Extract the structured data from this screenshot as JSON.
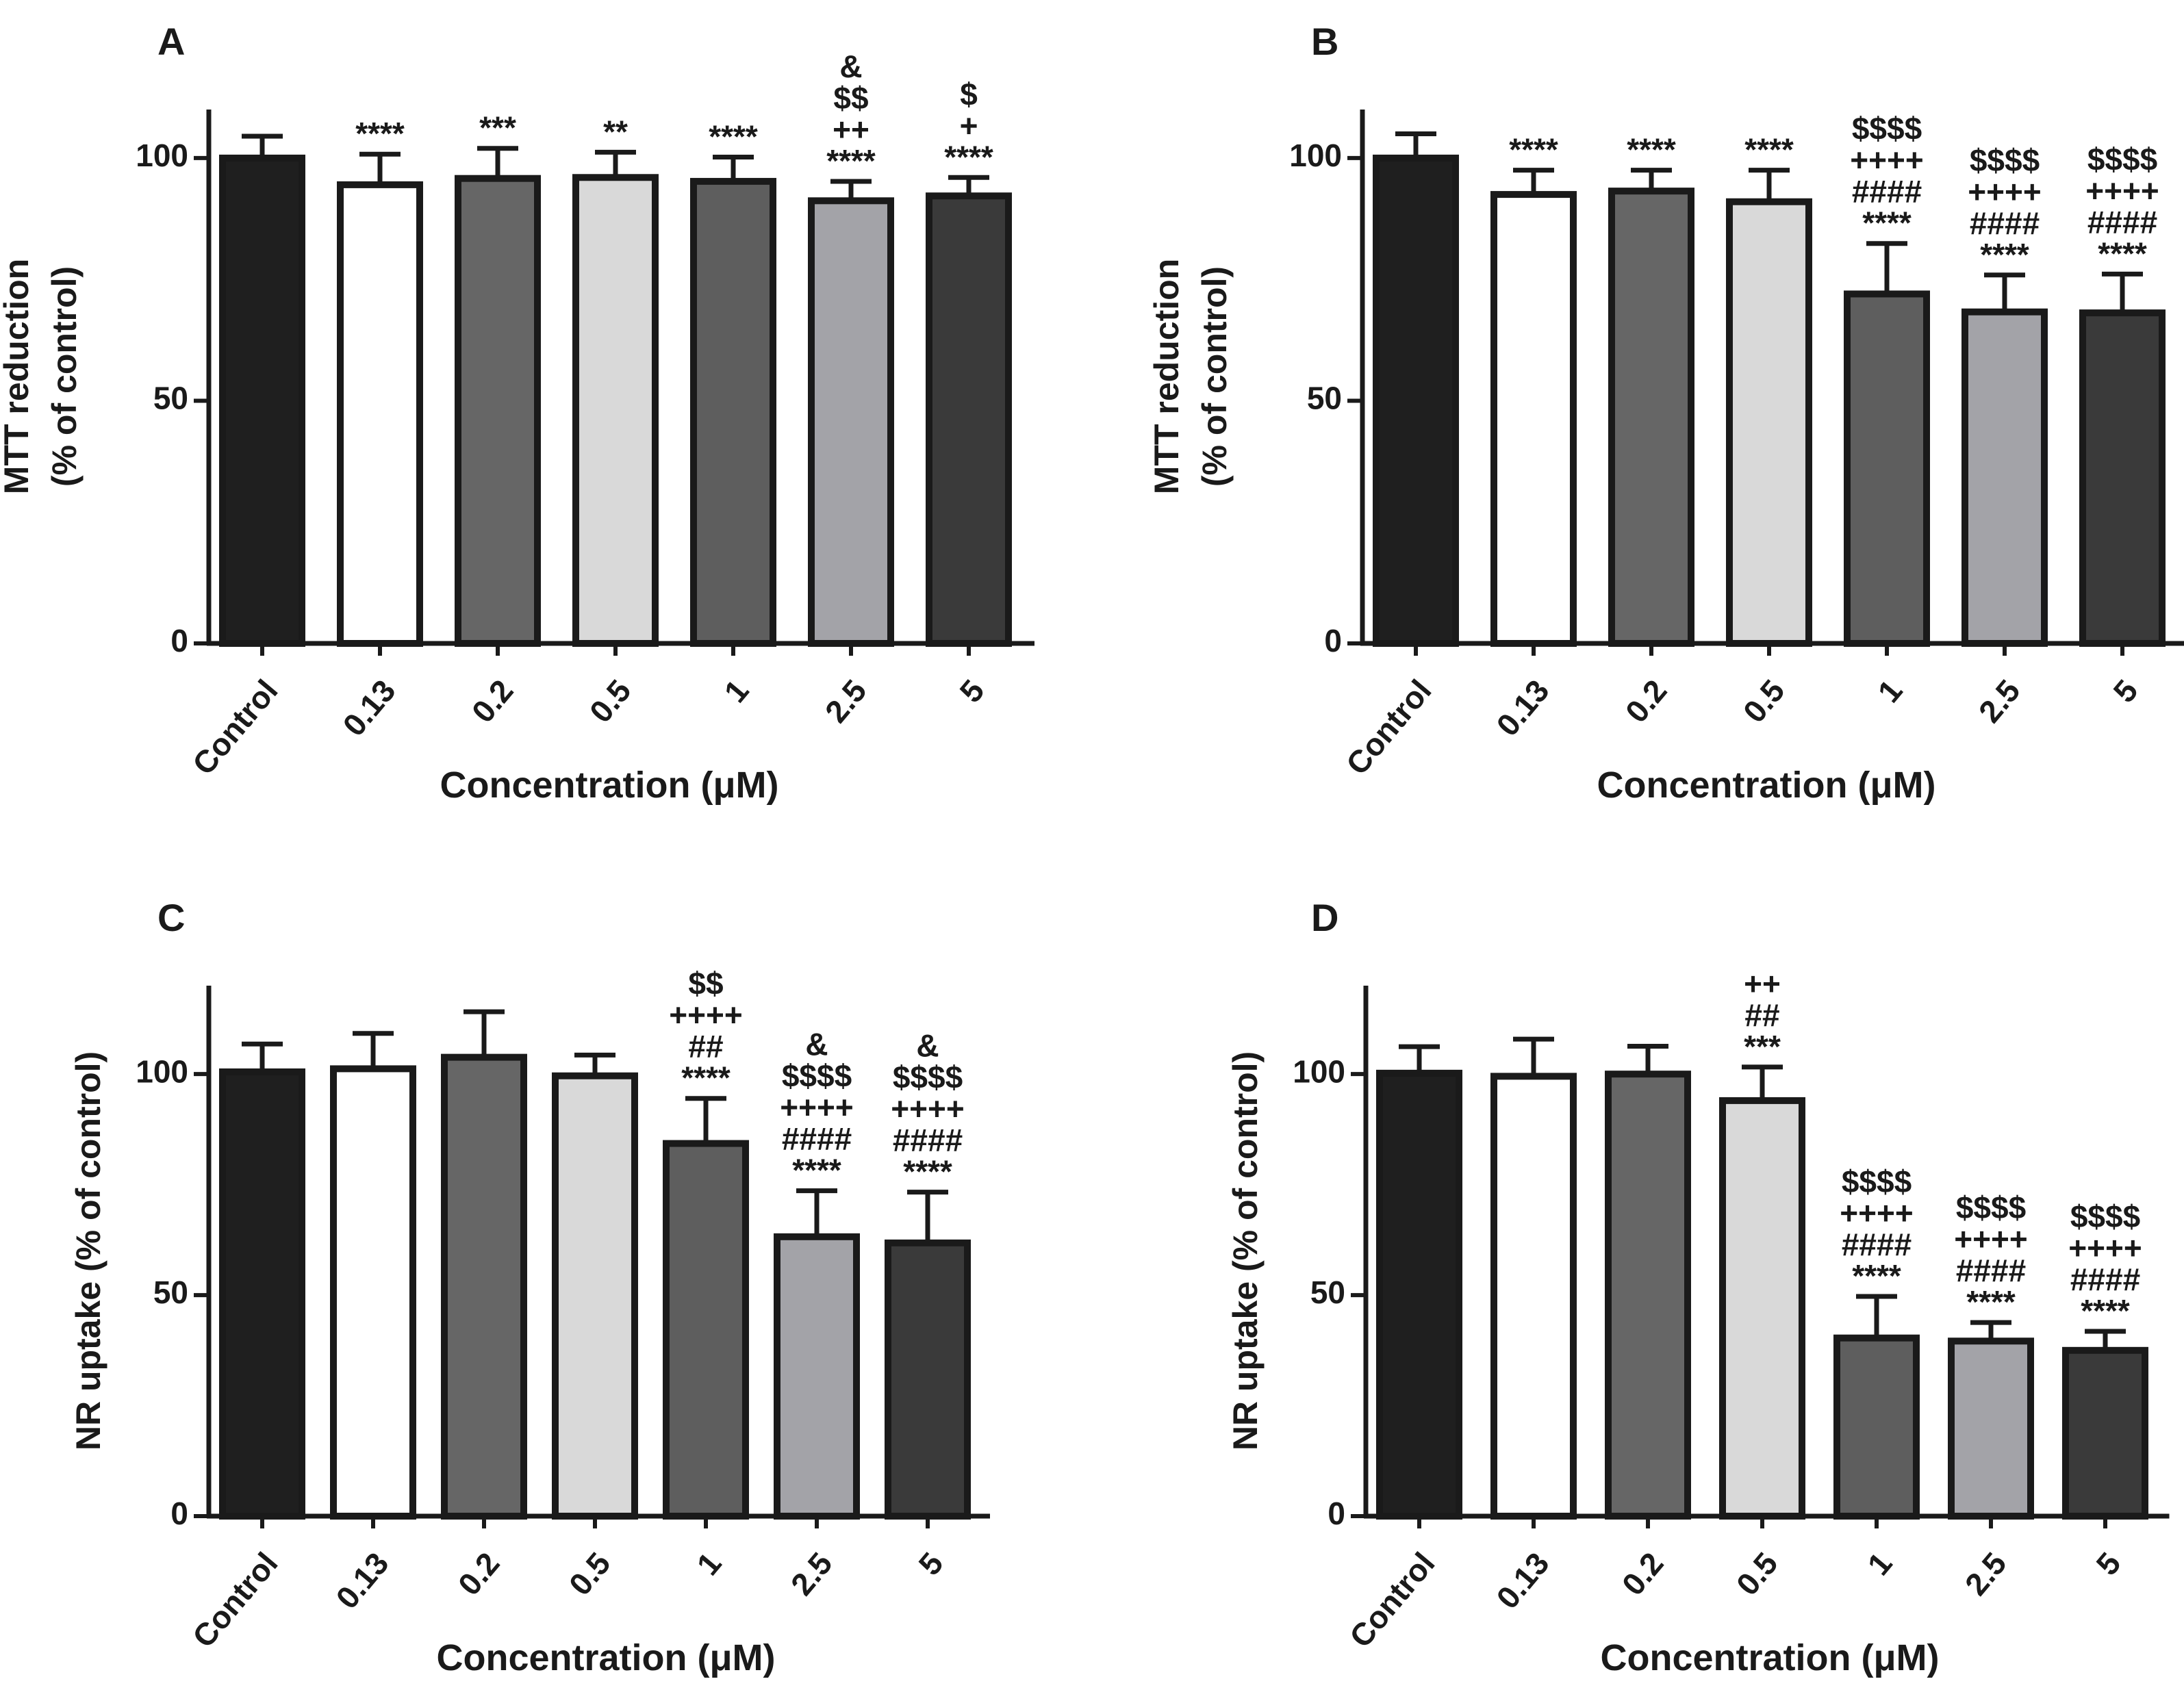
{
  "colors": {
    "axis": "#1a1a1a",
    "bars": [
      "#1f1f1f",
      "#ffffff",
      "#666666",
      "#d9d9d9",
      "#5e5e5e",
      "#a3a3a8",
      "#3a3a3a"
    ],
    "bars_bd": [
      "#1f1f1f",
      "#ffffff",
      "#888888",
      "#d9d9d9",
      "#8a8a8a",
      "#a3a3a8",
      "#3a3a3a"
    ]
  },
  "chart_data": [
    {
      "panel": "A",
      "type": "bar",
      "categories": [
        "Control",
        "0.13",
        "0.2",
        "0.5",
        "1",
        "2.5",
        "5"
      ],
      "values": [
        100,
        94.5,
        95.8,
        96,
        95.2,
        91.2,
        92.2
      ],
      "errors": [
        4.5,
        6.3,
        6.2,
        5.2,
        5.0,
        4.0,
        3.8
      ],
      "annotations": [
        [],
        [
          "****"
        ],
        [
          "***"
        ],
        [
          "**"
        ],
        [
          "****"
        ],
        [
          "&",
          "$$",
          "++",
          "****"
        ],
        [
          "$",
          "+",
          "****"
        ]
      ],
      "ylabel": "MTT reduction\n(% of control)",
      "xlabel": "Concentration (μM)",
      "ylim": [
        0,
        110
      ],
      "yticks": [
        0,
        50,
        100
      ]
    },
    {
      "panel": "B",
      "type": "bar",
      "categories": [
        "Control",
        "0.13",
        "0.2",
        "0.5",
        "1",
        "2.5",
        "5"
      ],
      "values": [
        100,
        92.5,
        93.2,
        91,
        72,
        68.3,
        68.1
      ],
      "errors": [
        5.0,
        5.0,
        4.3,
        6.5,
        10.4,
        7.6,
        8.0
      ],
      "annotations": [
        [],
        [
          "****"
        ],
        [
          "****"
        ],
        [
          "****"
        ],
        [
          "$$$$",
          "++++",
          "####",
          "****"
        ],
        [
          "$$$$",
          "++++",
          "####",
          "****"
        ],
        [
          "$$$$",
          "++++",
          "####",
          "****"
        ]
      ],
      "ylabel": "MTT reduction\n(% of control)",
      "xlabel": "Concentration (μM)",
      "ylim": [
        0,
        110
      ],
      "yticks": [
        0,
        50,
        100
      ]
    },
    {
      "panel": "C",
      "type": "bar",
      "categories": [
        "Control",
        "0.13",
        "0.2",
        "0.5",
        "1",
        "2.5",
        "5"
      ],
      "values": [
        100.5,
        101.2,
        103.8,
        99.6,
        84.3,
        63.2,
        61.8
      ],
      "errors": [
        6.3,
        8.0,
        10.3,
        4.7,
        10.2,
        10.4,
        11.5
      ],
      "annotations": [
        [],
        [],
        [],
        [],
        [
          "$$",
          "++++",
          "##",
          "****"
        ],
        [
          "&",
          "$$$$",
          "++++",
          "####",
          "****"
        ],
        [
          "&",
          "$$$$",
          "++++",
          "####",
          "****"
        ]
      ],
      "ylabel": "NR uptake (% of control)",
      "xlabel": "Concentration (μM)",
      "ylim": [
        0,
        120
      ],
      "yticks": [
        0,
        50,
        100
      ]
    },
    {
      "panel": "D",
      "type": "bar",
      "categories": [
        "Control",
        "0.13",
        "0.2",
        "0.5",
        "1",
        "2.5",
        "5"
      ],
      "values": [
        100.2,
        99.5,
        100,
        94,
        40.3,
        39.6,
        37.5
      ],
      "errors": [
        6.0,
        8.4,
        6.3,
        7.6,
        9.4,
        4.2,
        4.3
      ],
      "annotations": [
        [],
        [],
        [],
        [
          "++",
          "##",
          "***"
        ],
        [
          "$$$$",
          "++++",
          "####",
          "****"
        ],
        [
          "$$$$",
          "++++",
          "####",
          "****"
        ],
        [
          "$$$$",
          "++++",
          "####",
          "****"
        ]
      ],
      "ylabel": "NR uptake (% of control)",
      "xlabel": "Concentration (μM)",
      "ylim": [
        0,
        120
      ],
      "yticks": [
        0,
        50,
        100
      ]
    }
  ]
}
